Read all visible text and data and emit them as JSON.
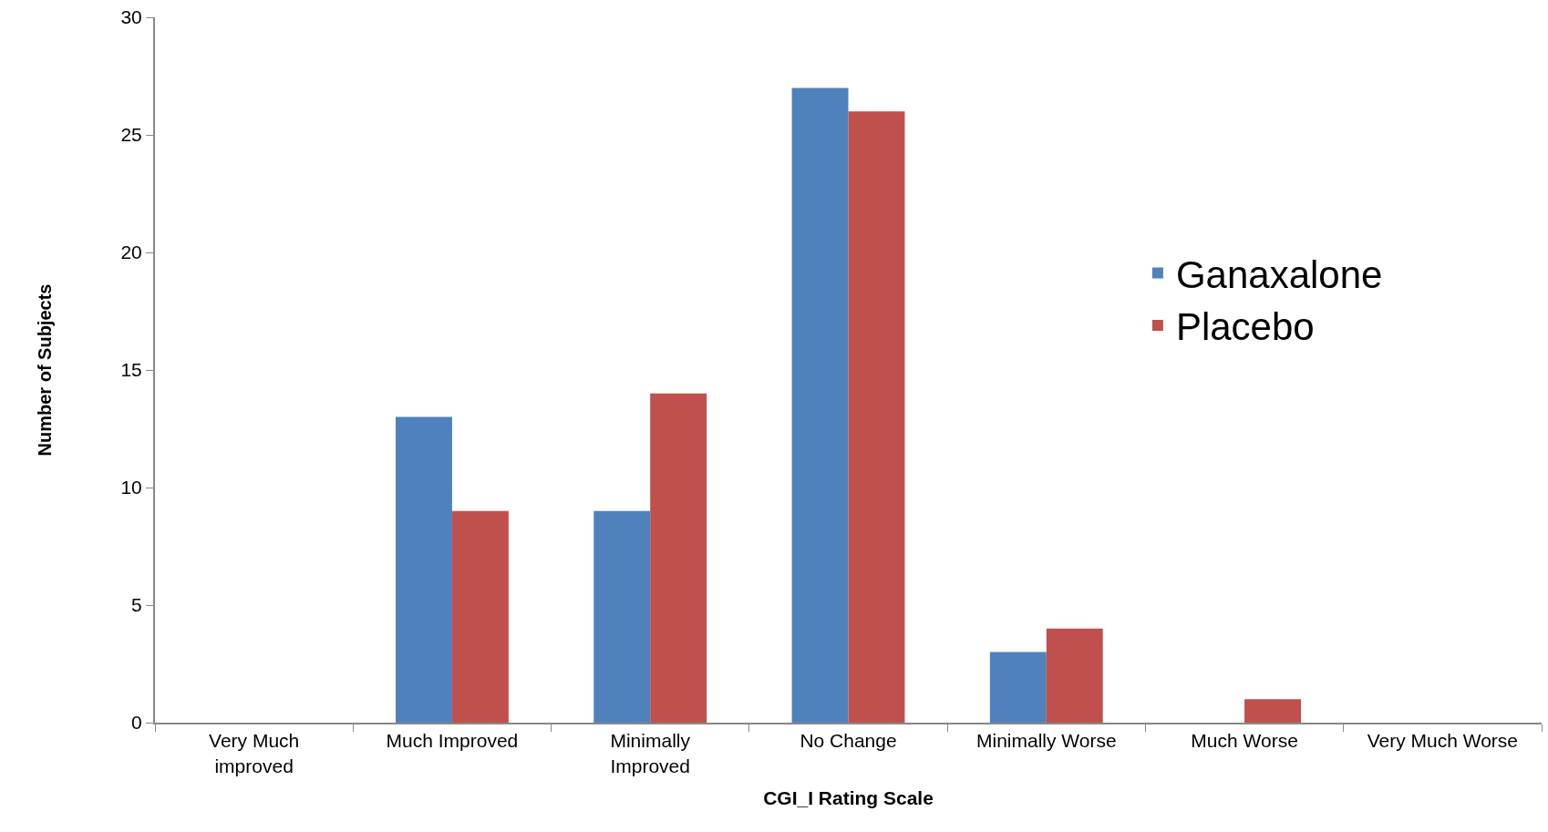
{
  "chart_data": {
    "type": "bar",
    "xlabel": "CGI_I Rating Scale",
    "ylabel": "Number of Subjects",
    "categories": [
      "Very Much\nimproved",
      "Much Improved",
      "Minimally\nImproved",
      "No Change",
      "Minimally Worse",
      "Much Worse",
      "Very Much Worse"
    ],
    "series": [
      {
        "name": "Ganaxalone",
        "color": "#4f81bd",
        "values": [
          0,
          13,
          9,
          27,
          3,
          0,
          0
        ]
      },
      {
        "name": "Placebo",
        "color": "#c0504d",
        "values": [
          0,
          9,
          14,
          26,
          4,
          1,
          0
        ]
      }
    ],
    "ylim": [
      0,
      30
    ],
    "yticks": [
      0,
      5,
      10,
      15,
      20,
      25,
      30
    ],
    "grid": false,
    "legend": "right"
  }
}
